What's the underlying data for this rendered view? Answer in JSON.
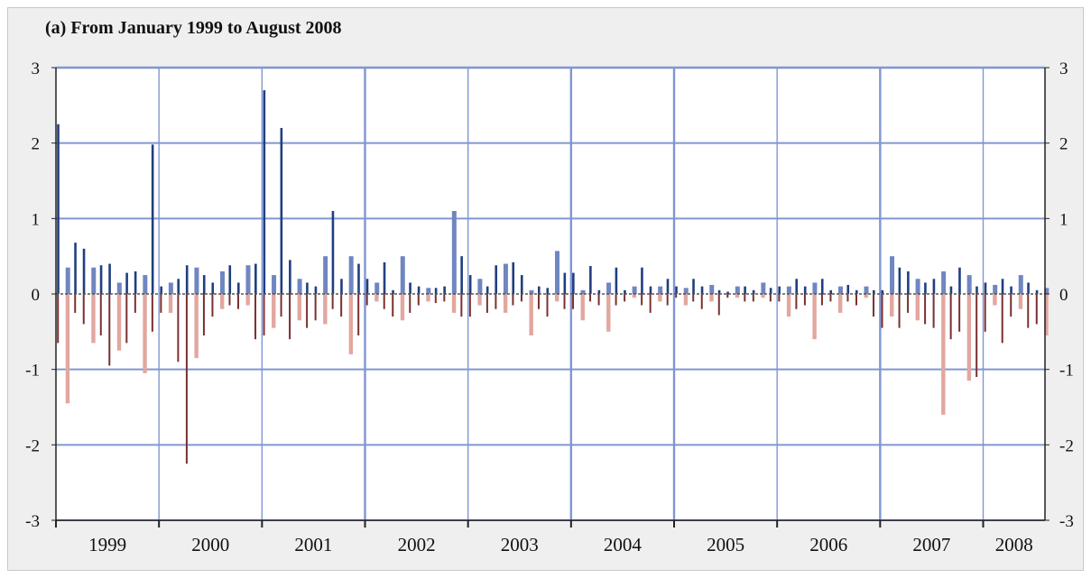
{
  "chart_data": {
    "type": "bar",
    "title": "(a) From January 1999 to August 2008",
    "ylim": [
      -3,
      3
    ],
    "yticks": [
      "3",
      "2",
      "1",
      "0",
      "-1",
      "-2",
      "-3"
    ],
    "years": [
      "1999",
      "2000",
      "2001",
      "2002",
      "2003",
      "2004",
      "2005",
      "2006",
      "2007",
      "2008"
    ],
    "grid": true,
    "colors": {
      "pos_dark": "#1f3f7f",
      "pos_light": "#6f86c0",
      "neg_dark": "#7a3030",
      "neg_light": "#e2a7a0",
      "grid": "#8096d2",
      "plot_bg": "#ffffff"
    },
    "series": [
      {
        "name": "",
        "months": {
          "1999": [
            [
              2.25,
              -0.65
            ],
            [
              0.35,
              -1.45
            ],
            [
              0.68,
              -0.25
            ],
            [
              0.6,
              -0.4
            ],
            [
              0.35,
              -0.65
            ],
            [
              0.38,
              -0.55
            ],
            [
              0.4,
              -0.95
            ],
            [
              0.15,
              -0.75
            ],
            [
              0.28,
              -0.65
            ],
            [
              0.3,
              -0.25
            ],
            [
              0.25,
              -1.05
            ],
            [
              1.98,
              -0.5
            ]
          ],
          "2000": [
            [
              0.1,
              -0.25
            ],
            [
              0.15,
              -0.25
            ],
            [
              0.2,
              -0.9
            ],
            [
              0.38,
              -2.25
            ],
            [
              0.35,
              -0.85
            ],
            [
              0.25,
              -0.55
            ],
            [
              0.15,
              -0.3
            ],
            [
              0.3,
              -0.2
            ],
            [
              0.38,
              -0.15
            ],
            [
              0.15,
              -0.2
            ],
            [
              0.38,
              -0.15
            ],
            [
              0.4,
              -0.6
            ]
          ],
          "2001": [
            [
              2.7,
              -0.55
            ],
            [
              0.25,
              -0.45
            ],
            [
              2.2,
              -0.3
            ],
            [
              0.45,
              -0.6
            ],
            [
              0.2,
              -0.35
            ],
            [
              0.15,
              -0.45
            ],
            [
              0.1,
              -0.35
            ],
            [
              0.5,
              -0.4
            ],
            [
              1.1,
              -0.2
            ],
            [
              0.2,
              -0.3
            ],
            [
              0.5,
              -0.8
            ],
            [
              0.4,
              -0.55
            ]
          ],
          "2002": [
            [
              0.2,
              -0.15
            ],
            [
              0.15,
              -0.1
            ],
            [
              0.42,
              -0.2
            ],
            [
              0.05,
              -0.3
            ],
            [
              0.5,
              -0.35
            ],
            [
              0.15,
              -0.25
            ],
            [
              0.1,
              -0.15
            ],
            [
              0.08,
              -0.1
            ],
            [
              0.08,
              -0.12
            ],
            [
              0.1,
              -0.1
            ],
            [
              1.1,
              -0.25
            ],
            [
              0.5,
              -0.3
            ]
          ],
          "2003": [
            [
              0.25,
              -0.3
            ],
            [
              0.2,
              -0.15
            ],
            [
              0.1,
              -0.25
            ],
            [
              0.38,
              -0.2
            ],
            [
              0.4,
              -0.25
            ],
            [
              0.42,
              -0.15
            ],
            [
              0.25,
              -0.1
            ],
            [
              0.05,
              -0.55
            ],
            [
              0.1,
              -0.2
            ],
            [
              0.08,
              -0.3
            ],
            [
              0.57,
              -0.1
            ],
            [
              0.28,
              -0.2
            ]
          ],
          "2004": [
            [
              0.28,
              -0.2
            ],
            [
              0.05,
              -0.35
            ],
            [
              0.37,
              -0.1
            ],
            [
              0.05,
              -0.15
            ],
            [
              0.15,
              -0.5
            ],
            [
              0.35,
              -0.15
            ],
            [
              0.05,
              -0.1
            ],
            [
              0.1,
              -0.05
            ],
            [
              0.35,
              -0.15
            ],
            [
              0.1,
              -0.25
            ],
            [
              0.1,
              -0.1
            ],
            [
              0.2,
              -0.15
            ]
          ],
          "2005": [
            [
              0.1,
              -0.05
            ],
            [
              0.08,
              -0.15
            ],
            [
              0.2,
              -0.1
            ],
            [
              0.1,
              -0.2
            ],
            [
              0.12,
              -0.1
            ],
            [
              0.05,
              -0.28
            ],
            [
              0.03,
              -0.05
            ],
            [
              0.1,
              -0.05
            ],
            [
              0.1,
              -0.1
            ],
            [
              0.05,
              -0.1
            ],
            [
              0.15,
              -0.05
            ],
            [
              0.08,
              -0.1
            ]
          ],
          "2006": [
            [
              0.1,
              -0.1
            ],
            [
              0.1,
              -0.3
            ],
            [
              0.2,
              -0.2
            ],
            [
              0.1,
              -0.15
            ],
            [
              0.15,
              -0.6
            ],
            [
              0.2,
              -0.15
            ],
            [
              0.05,
              -0.1
            ],
            [
              0.1,
              -0.25
            ],
            [
              0.12,
              -0.1
            ],
            [
              0.05,
              -0.15
            ],
            [
              0.1,
              -0.05
            ],
            [
              0.05,
              -0.3
            ]
          ],
          "2007": [
            [
              0.05,
              -0.45
            ],
            [
              0.5,
              -0.3
            ],
            [
              0.35,
              -0.45
            ],
            [
              0.3,
              -0.25
            ],
            [
              0.2,
              -0.35
            ],
            [
              0.15,
              -0.4
            ],
            [
              0.2,
              -0.45
            ],
            [
              0.3,
              -1.6
            ],
            [
              0.1,
              -0.6
            ],
            [
              0.35,
              -0.5
            ],
            [
              0.25,
              -1.15
            ],
            [
              0.1,
              -1.1
            ]
          ],
          "2008": [
            [
              0.15,
              -0.5
            ],
            [
              0.12,
              -0.15
            ],
            [
              0.2,
              -0.65
            ],
            [
              0.1,
              -0.3
            ],
            [
              0.25,
              -0.2
            ],
            [
              0.15,
              -0.45
            ],
            [
              0.05,
              -0.4
            ],
            [
              0.08,
              -0.55
            ]
          ]
        }
      }
    ]
  }
}
